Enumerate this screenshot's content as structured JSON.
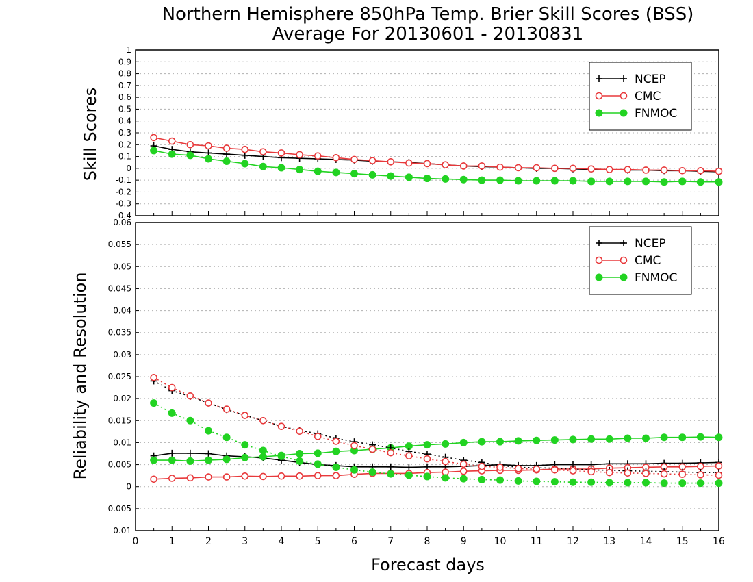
{
  "header": {
    "title": "Northern Hemisphere 850hPa Temp. Brier Skill Scores (BSS)",
    "subtitle": "Average For 20130601 - 20130831"
  },
  "colors": {
    "NCEP": "#000000",
    "CMC": "#e8393b",
    "FNMOC": "#22d322"
  },
  "chart_data": [
    {
      "type": "line",
      "ylabel": "Skill Scores",
      "xlim": [
        0,
        16
      ],
      "ylim": [
        -0.4,
        1
      ],
      "yticks": [
        "-0.4",
        "-0.3",
        "-0.2",
        "-0.1",
        "0",
        "0.1",
        "0.2",
        "0.3",
        "0.4",
        "0.5",
        "0.6",
        "0.7",
        "0.8",
        "0.9",
        "1"
      ],
      "grid": true,
      "legend_position": "top-right",
      "x": [
        0.5,
        1,
        1.5,
        2,
        2.5,
        3,
        3.5,
        4,
        4.5,
        5,
        5.5,
        6,
        6.5,
        7,
        7.5,
        8,
        8.5,
        9,
        9.5,
        10,
        10.5,
        11,
        11.5,
        12,
        12.5,
        13,
        13.5,
        14,
        14.5,
        15,
        15.5,
        16
      ],
      "series": [
        {
          "name": "NCEP",
          "marker": "plus",
          "style": "solid",
          "values": [
            0.19,
            0.16,
            0.14,
            0.13,
            0.12,
            0.11,
            0.1,
            0.09,
            0.085,
            0.08,
            0.075,
            0.07,
            0.06,
            0.055,
            0.05,
            0.04,
            0.03,
            0.02,
            0.015,
            0.01,
            0.005,
            0,
            0,
            -0.005,
            -0.01,
            -0.01,
            -0.015,
            -0.015,
            -0.02,
            -0.02,
            -0.025,
            -0.03
          ]
        },
        {
          "name": "CMC",
          "marker": "circle",
          "style": "solid",
          "values": [
            0.26,
            0.23,
            0.2,
            0.19,
            0.17,
            0.16,
            0.14,
            0.13,
            0.115,
            0.105,
            0.09,
            0.075,
            0.065,
            0.055,
            0.045,
            0.04,
            0.03,
            0.02,
            0.02,
            0.01,
            0.005,
            0.005,
            0,
            0,
            -0.005,
            -0.01,
            -0.01,
            -0.015,
            -0.015,
            -0.02,
            -0.02,
            -0.025
          ]
        },
        {
          "name": "FNMOC",
          "marker": "dot",
          "style": "solid",
          "values": [
            0.15,
            0.12,
            0.11,
            0.08,
            0.06,
            0.04,
            0.015,
            0.005,
            -0.01,
            -0.025,
            -0.035,
            -0.045,
            -0.055,
            -0.065,
            -0.075,
            -0.085,
            -0.09,
            -0.095,
            -0.1,
            -0.1,
            -0.105,
            -0.105,
            -0.105,
            -0.105,
            -0.11,
            -0.11,
            -0.11,
            -0.11,
            -0.115,
            -0.11,
            -0.115,
            -0.115
          ]
        }
      ]
    },
    {
      "type": "line",
      "xlabel": "Forecast days",
      "ylabel": "Reliability and Resolution",
      "xlim": [
        0,
        16
      ],
      "ylim": [
        -0.01,
        0.06
      ],
      "yticks": [
        "-0.01",
        "-0.005",
        "0",
        "0.005",
        "0.01",
        "0.015",
        "0.02",
        "0.025",
        "0.03",
        "0.035",
        "0.04",
        "0.045",
        "0.05",
        "0.055",
        "0.06"
      ],
      "xticks": [
        "0",
        "1",
        "2",
        "3",
        "4",
        "5",
        "6",
        "7",
        "8",
        "9",
        "10",
        "11",
        "12",
        "13",
        "14",
        "15",
        "16"
      ],
      "grid": true,
      "legend_position": "top-right",
      "x": [
        0.5,
        1,
        1.5,
        2,
        2.5,
        3,
        3.5,
        4,
        4.5,
        5,
        5.5,
        6,
        6.5,
        7,
        7.5,
        8,
        8.5,
        9,
        9.5,
        10,
        10.5,
        11,
        11.5,
        12,
        12.5,
        13,
        13.5,
        14,
        14.5,
        15,
        15.5,
        16
      ],
      "series": [
        {
          "name": "NCEP",
          "marker": "plus",
          "style": "solid",
          "values": [
            0.007,
            0.0076,
            0.0076,
            0.0075,
            0.007,
            0.0068,
            0.0065,
            0.006,
            0.0055,
            0.005,
            0.0048,
            0.0045,
            0.0045,
            0.0045,
            0.0044,
            0.0045,
            0.0045,
            0.0046,
            0.0048,
            0.005,
            0.0048,
            0.0048,
            0.005,
            0.005,
            0.005,
            0.0052,
            0.0052,
            0.0052,
            0.0053,
            0.0053,
            0.0054,
            0.0055
          ]
        },
        {
          "name": "CMC",
          "marker": "circle",
          "style": "solid",
          "values": [
            0.0017,
            0.0019,
            0.002,
            0.0022,
            0.0022,
            0.0024,
            0.0023,
            0.0024,
            0.0024,
            0.0025,
            0.0025,
            0.0028,
            0.003,
            0.003,
            0.003,
            0.0032,
            0.0033,
            0.0035,
            0.0036,
            0.0037,
            0.0037,
            0.0038,
            0.004,
            0.004,
            0.004,
            0.0042,
            0.0043,
            0.0044,
            0.0045,
            0.0045,
            0.0046,
            0.0047
          ]
        },
        {
          "name": "FNMOC",
          "marker": "dot",
          "style": "solid",
          "values": [
            0.006,
            0.006,
            0.0058,
            0.006,
            0.0062,
            0.0066,
            0.0068,
            0.0071,
            0.0075,
            0.0076,
            0.008,
            0.0082,
            0.0085,
            0.0088,
            0.0092,
            0.0095,
            0.0097,
            0.01,
            0.0102,
            0.0102,
            0.0104,
            0.0105,
            0.0106,
            0.0107,
            0.0108,
            0.0108,
            0.011,
            0.011,
            0.0112,
            0.0112,
            0.0113,
            0.0112
          ]
        },
        {
          "name": "NCEP",
          "marker": "plus",
          "style": "dotted",
          "values": [
            0.024,
            0.0218,
            0.0205,
            0.019,
            0.0175,
            0.0162,
            0.015,
            0.0137,
            0.0128,
            0.012,
            0.011,
            0.0102,
            0.0095,
            0.0088,
            0.008,
            0.0074,
            0.0067,
            0.006,
            0.0055,
            0.0048,
            0.0044,
            0.0043,
            0.0042,
            0.004,
            0.0038,
            0.0037,
            0.0036,
            0.0035,
            0.0034,
            0.0033,
            0.0032,
            0.0032
          ]
        },
        {
          "name": "CMC",
          "marker": "circle",
          "style": "dotted",
          "values": [
            0.0248,
            0.0225,
            0.0206,
            0.019,
            0.0176,
            0.0162,
            0.015,
            0.0137,
            0.0126,
            0.0114,
            0.0103,
            0.0093,
            0.0085,
            0.0077,
            0.007,
            0.0063,
            0.0057,
            0.0051,
            0.0046,
            0.0044,
            0.0041,
            0.004,
            0.0038,
            0.0036,
            0.0034,
            0.0032,
            0.0031,
            0.003,
            0.0029,
            0.0028,
            0.0027,
            0.0026
          ]
        },
        {
          "name": "FNMOC",
          "marker": "dot",
          "style": "dotted",
          "values": [
            0.019,
            0.0167,
            0.015,
            0.0127,
            0.0112,
            0.0095,
            0.0082,
            0.0069,
            0.0058,
            0.0051,
            0.0044,
            0.0038,
            0.0033,
            0.0029,
            0.0026,
            0.0023,
            0.002,
            0.0018,
            0.0016,
            0.0015,
            0.0013,
            0.0012,
            0.0011,
            0.001,
            0.001,
            0.0009,
            0.0009,
            0.0009,
            0.0008,
            0.0008,
            0.0008,
            0.0008
          ]
        }
      ]
    }
  ],
  "legend": {
    "entries": [
      "NCEP",
      "CMC",
      "FNMOC"
    ]
  }
}
